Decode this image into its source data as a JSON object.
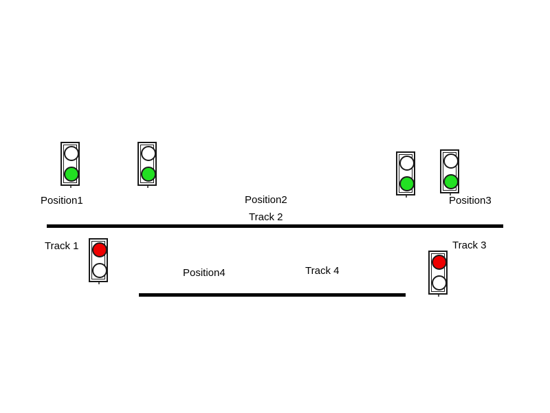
{
  "colors": {
    "green": "#22e022",
    "red": "#ee0000",
    "off": "#ffffff",
    "track": "#000000"
  },
  "labels": {
    "position1": "Position1",
    "position2": "Position2",
    "position3": "Position3",
    "position4": "Position4",
    "track1": "Track 1",
    "track2": "Track 2",
    "track3": "Track 3",
    "track4": "Track 4"
  },
  "signals": [
    {
      "id": "signal-1",
      "top": "off",
      "bottom": "green"
    },
    {
      "id": "signal-2",
      "top": "off",
      "bottom": "green"
    },
    {
      "id": "signal-3",
      "top": "off",
      "bottom": "green"
    },
    {
      "id": "signal-4",
      "top": "off",
      "bottom": "green"
    },
    {
      "id": "signal-5",
      "top": "red",
      "bottom": "off"
    },
    {
      "id": "signal-6",
      "top": "red",
      "bottom": "off"
    }
  ]
}
